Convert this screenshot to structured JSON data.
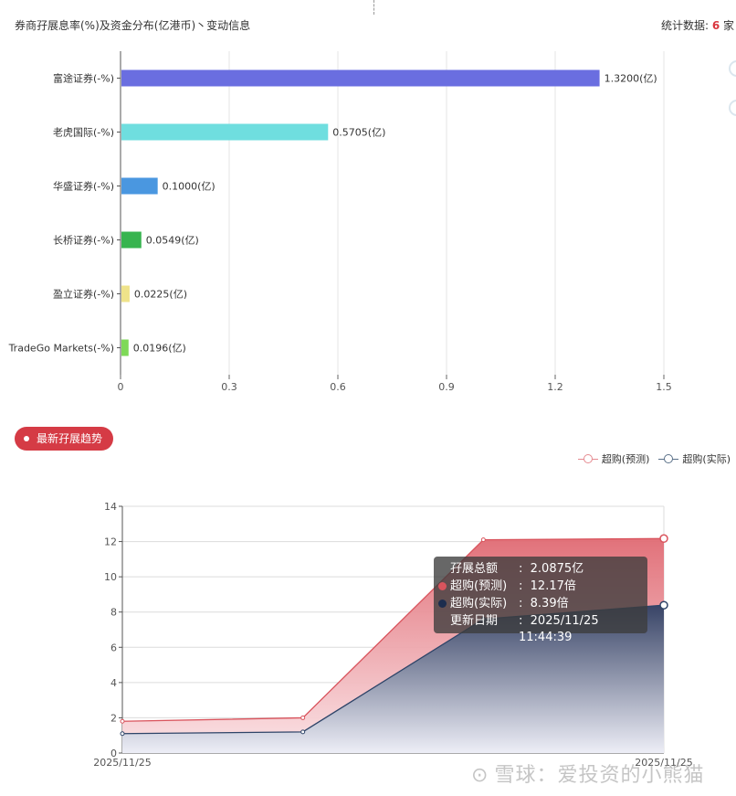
{
  "header": {
    "title": "券商孖展息率(%)及资金分布(亿港币)丶变动信息",
    "stat_prefix": "统计数据: ",
    "stat_count": "6",
    "stat_suffix": " 家"
  },
  "trend_button": {
    "label": "最新孖展趋势"
  },
  "chart_data": [
    {
      "type": "bar",
      "orientation": "horizontal",
      "categories": [
        "富途证券(-%)",
        "老虎国际(-%)",
        "华盛证券(-%)",
        "长桥证券(-%)",
        "盈立证券(-%)",
        "TradeGo Markets(-%)"
      ],
      "values": [
        1.32,
        0.5705,
        0.1,
        0.0549,
        0.0225,
        0.0196
      ],
      "data_labels": [
        "1.3200(亿)",
        "0.5705(亿)",
        "0.1000(亿)",
        "0.0549(亿)",
        "0.0225(亿)",
        "0.0196(亿)"
      ],
      "colors": [
        "#6a6ee0",
        "#6fdedf",
        "#4a97e0",
        "#37b44f",
        "#efe38a",
        "#7ed957"
      ],
      "xlim": [
        0,
        1.5
      ],
      "xticks": [
        "0",
        "0.3",
        "0.6",
        "0.9",
        "1.2",
        "1.5"
      ],
      "grid": true
    },
    {
      "type": "area",
      "x_labels": [
        "2025/11/25",
        "2025/11/25"
      ],
      "yticks": [
        "0",
        "2",
        "4",
        "6",
        "8",
        "10",
        "12",
        "14"
      ],
      "ylim": [
        0,
        14
      ],
      "series": [
        {
          "name": "超购(预测)",
          "color": "#d9545d",
          "values": [
            1.8,
            2.0,
            12.1,
            12.17
          ]
        },
        {
          "name": "超购(实际)",
          "color": "#2e4468",
          "values": [
            1.1,
            1.2,
            7.6,
            8.39
          ]
        }
      ],
      "legend_position": "top-right",
      "grid": true
    }
  ],
  "tooltip": {
    "rows": [
      {
        "label": "孖展总额",
        "sep": ":",
        "value": "2.0875亿",
        "marker": ""
      },
      {
        "label": "超购(预测)",
        "sep": ":",
        "value": "12.17倍",
        "marker": "#d9545d"
      },
      {
        "label": "超购(实际)",
        "sep": ":",
        "value": "8.39倍",
        "marker": "#1c2d4e"
      },
      {
        "label": "更新日期",
        "sep": ":",
        "value": "2025/11/25 11:44:39",
        "marker": ""
      }
    ]
  },
  "watermark": {
    "logo": "⊙",
    "text": "雪球：爱投资的小熊猫"
  }
}
